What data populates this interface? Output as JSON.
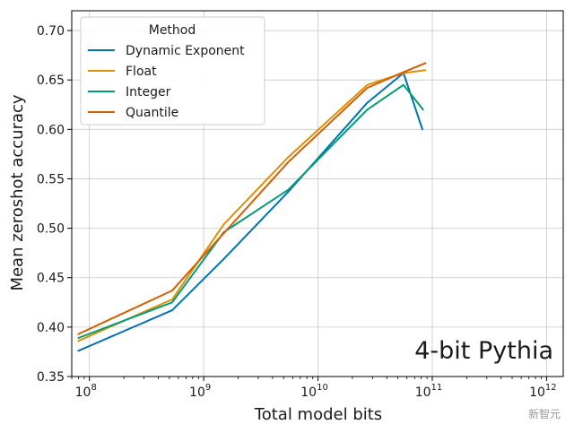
{
  "chart_data": {
    "type": "line",
    "title": "",
    "xlabel": "Total model bits",
    "ylabel": "Mean zeroshot accuracy",
    "xscale": "log",
    "xlim": [
      70000000,
      1400000000000
    ],
    "ylim": [
      0.35,
      0.72
    ],
    "grid": true,
    "x_ticks": [
      {
        "value": 100000000,
        "base": "10",
        "exp": "8"
      },
      {
        "value": 1000000000,
        "base": "10",
        "exp": "9"
      },
      {
        "value": 10000000000,
        "base": "10",
        "exp": "10"
      },
      {
        "value": 100000000000,
        "base": "10",
        "exp": "11"
      },
      {
        "value": 1000000000000,
        "base": "10",
        "exp": "12"
      }
    ],
    "y_ticks": [
      {
        "value": 0.35,
        "label": "0.35"
      },
      {
        "value": 0.4,
        "label": "0.40"
      },
      {
        "value": 0.45,
        "label": "0.45"
      },
      {
        "value": 0.5,
        "label": "0.50"
      },
      {
        "value": 0.55,
        "label": "0.55"
      },
      {
        "value": 0.6,
        "label": "0.60"
      },
      {
        "value": 0.65,
        "label": "0.65"
      },
      {
        "value": 0.7,
        "label": "0.70"
      }
    ],
    "legend": {
      "title": "Method",
      "position": "top-left"
    },
    "annotation": "4-bit Pythia",
    "series": [
      {
        "name": "Dynamic Exponent",
        "color": "#0173b2",
        "x": [
          80000000,
          530000000,
          1500000000,
          5500000000,
          27000000000,
          56000000000,
          82000000000
        ],
        "y": [
          0.376,
          0.417,
          0.469,
          0.537,
          0.627,
          0.657,
          0.6
        ]
      },
      {
        "name": "Float",
        "color": "#de8f05",
        "x": [
          80000000,
          530000000,
          1500000000,
          5500000000,
          27000000000,
          56000000000,
          87000000000
        ],
        "y": [
          0.386,
          0.428,
          0.504,
          0.572,
          0.645,
          0.657,
          0.66
        ]
      },
      {
        "name": "Integer",
        "color": "#029e73",
        "x": [
          80000000,
          530000000,
          1500000000,
          5500000000,
          27000000000,
          56000000000,
          83000000000
        ],
        "y": [
          0.389,
          0.425,
          0.496,
          0.539,
          0.62,
          0.645,
          0.62
        ]
      },
      {
        "name": "Quantile",
        "color": "#d55e00",
        "x": [
          80000000,
          530000000,
          1500000000,
          5500000000,
          27000000000,
          56000000000,
          87000000000
        ],
        "y": [
          0.393,
          0.437,
          0.495,
          0.567,
          0.642,
          0.658,
          0.667
        ]
      }
    ]
  },
  "watermark": "新智元"
}
